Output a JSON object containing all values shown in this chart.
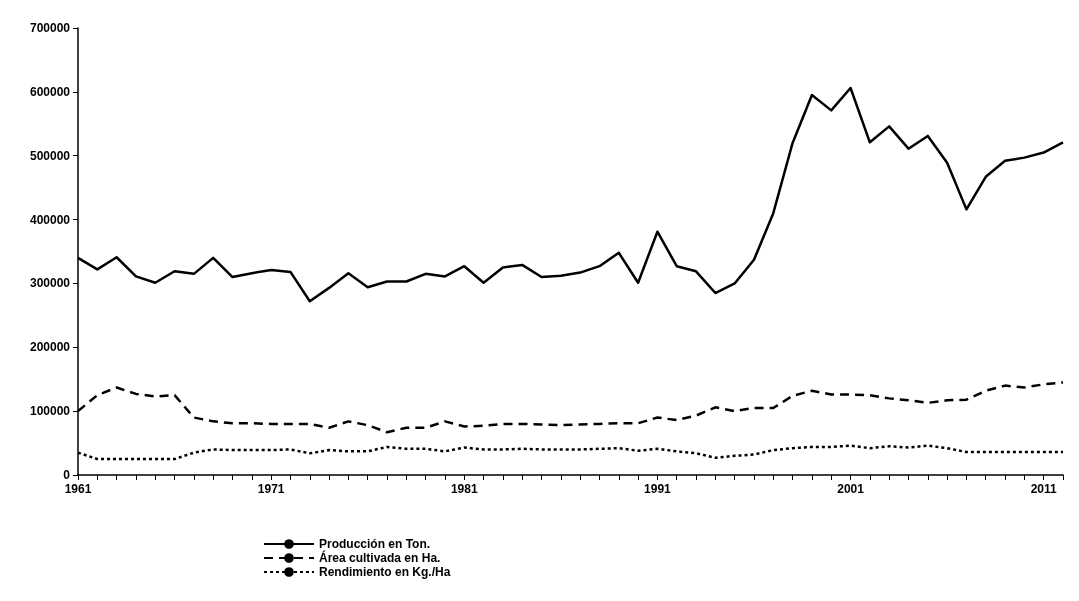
{
  "chart_data": {
    "type": "line",
    "x": [
      1961,
      1962,
      1963,
      1964,
      1965,
      1966,
      1967,
      1968,
      1969,
      1970,
      1971,
      1972,
      1973,
      1974,
      1975,
      1976,
      1977,
      1978,
      1979,
      1980,
      1981,
      1982,
      1983,
      1984,
      1985,
      1986,
      1987,
      1988,
      1989,
      1990,
      1991,
      1992,
      1993,
      1994,
      1995,
      1996,
      1997,
      1998,
      1999,
      2000,
      2001,
      2002,
      2003,
      2004,
      2005,
      2006,
      2007,
      2008,
      2009,
      2010,
      2011,
      2012
    ],
    "series": [
      {
        "name": "Producción en Ton.",
        "color": "#000000",
        "line_style": "solid",
        "values": [
          340000,
          322000,
          341000,
          311000,
          301000,
          319000,
          315000,
          340000,
          310000,
          316000,
          321000,
          318000,
          272000,
          293000,
          316000,
          294000,
          303000,
          303000,
          315000,
          311000,
          327000,
          301000,
          325000,
          329000,
          310000,
          312000,
          317000,
          327000,
          348000,
          301000,
          381000,
          327000,
          319000,
          285000,
          300000,
          337000,
          410000,
          520000,
          595000,
          571000,
          606000,
          521000,
          546000,
          511000,
          531000,
          489000,
          416000,
          467000,
          492000,
          497000,
          505000,
          521000
        ]
      },
      {
        "name": "Área cultivada en Ha.",
        "color": "#000000",
        "line_style": "dashed",
        "values": [
          100000,
          125000,
          137000,
          127000,
          123000,
          125000,
          90000,
          84000,
          81000,
          81000,
          80000,
          80000,
          80000,
          74000,
          84000,
          78000,
          67000,
          74000,
          74000,
          84000,
          76000,
          77000,
          80000,
          80000,
          79000,
          78000,
          79000,
          80000,
          81000,
          81000,
          90000,
          86000,
          93000,
          106000,
          100000,
          105000,
          105000,
          124000,
          132000,
          126000,
          126000,
          125000,
          120000,
          117000,
          113000,
          117000,
          118000,
          132000,
          140000,
          137000,
          142000,
          145000
        ]
      },
      {
        "name": "Rendimiento en Kg./Ha",
        "color": "#000000",
        "line_style": "dotted",
        "values": [
          35000,
          25000,
          25000,
          25000,
          25000,
          25000,
          35000,
          40000,
          39000,
          39000,
          39000,
          40000,
          34000,
          39000,
          37000,
          37000,
          44000,
          41000,
          41000,
          37000,
          43000,
          40000,
          40000,
          41000,
          40000,
          40000,
          40000,
          41000,
          42000,
          38000,
          41000,
          37000,
          34000,
          27000,
          30000,
          32000,
          39000,
          42000,
          44000,
          44000,
          46000,
          42000,
          45000,
          43000,
          46000,
          42000,
          36000,
          36000,
          36000,
          36000,
          36000,
          36000
        ]
      }
    ],
    "xlim": [
      1961,
      2012
    ],
    "xticks": [
      1961,
      {
        "value": 1962,
        "label": null
      },
      {
        "value": 1963,
        "label": null
      },
      {
        "value": 1964,
        "label": null
      },
      {
        "value": 1965,
        "label": null
      },
      {
        "value": 1966,
        "label": null
      },
      {
        "value": 1967,
        "label": null
      },
      {
        "value": 1968,
        "label": null
      },
      {
        "value": 1969,
        "label": null
      },
      {
        "value": 1970,
        "label": null
      },
      1971,
      {
        "value": 1972,
        "label": null
      },
      {
        "value": 1973,
        "label": null
      },
      {
        "value": 1974,
        "label": null
      },
      {
        "value": 1975,
        "label": null
      },
      {
        "value": 1976,
        "label": null
      },
      {
        "value": 1977,
        "label": null
      },
      {
        "value": 1978,
        "label": null
      },
      {
        "value": 1979,
        "label": null
      },
      {
        "value": 1980,
        "label": null
      },
      1981,
      {
        "value": 1982,
        "label": null
      },
      {
        "value": 1983,
        "label": null
      },
      {
        "value": 1984,
        "label": null
      },
      {
        "value": 1985,
        "label": null
      },
      {
        "value": 1986,
        "label": null
      },
      {
        "value": 1987,
        "label": null
      },
      {
        "value": 1988,
        "label": null
      },
      {
        "value": 1989,
        "label": null
      },
      {
        "value": 1990,
        "label": null
      },
      1991,
      {
        "value": 1992,
        "label": null
      },
      {
        "value": 1993,
        "label": null
      },
      {
        "value": 1994,
        "label": null
      },
      {
        "value": 1995,
        "label": null
      },
      {
        "value": 1996,
        "label": null
      },
      {
        "value": 1997,
        "label": null
      },
      {
        "value": 1998,
        "label": null
      },
      {
        "value": 1999,
        "label": null
      },
      {
        "value": 2000,
        "label": null
      },
      2001,
      {
        "value": 2002,
        "label": null
      },
      {
        "value": 2003,
        "label": null
      },
      {
        "value": 2004,
        "label": null
      },
      {
        "value": 2005,
        "label": null
      },
      {
        "value": 2006,
        "label": null
      },
      {
        "value": 2007,
        "label": null
      },
      {
        "value": 2008,
        "label": null
      },
      {
        "value": 2009,
        "label": null
      },
      {
        "value": 2010,
        "label": null
      },
      2011,
      {
        "value": 2012,
        "label": null
      }
    ],
    "ylim": [
      0,
      700000
    ],
    "yticks": [
      0,
      100000,
      200000,
      300000,
      400000,
      500000,
      600000,
      700000
    ],
    "grid": false,
    "legend": "bottom",
    "marker": "none"
  }
}
